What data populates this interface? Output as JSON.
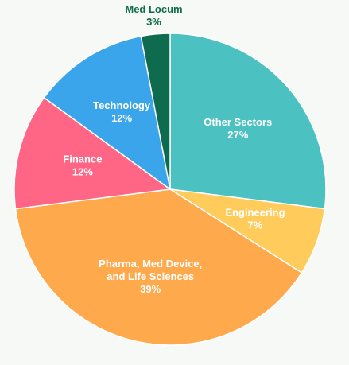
{
  "chart_data": {
    "type": "pie",
    "title": "",
    "start_angle_deg": 0,
    "direction": "clockwise",
    "slices": [
      {
        "label_lines": [
          "Other Sectors"
        ],
        "label": "Other Sectors",
        "value": 27,
        "value_label": "27%",
        "color": "#4cc1c1"
      },
      {
        "label_lines": [
          "Engineering"
        ],
        "label": "Engineering",
        "value": 7,
        "value_label": "7%",
        "color": "#ffcc5c"
      },
      {
        "label_lines": [
          "Pharma, Med Device,",
          "and Life Sciences"
        ],
        "label": "Pharma, Med Device, and Life Sciences",
        "value": 39,
        "value_label": "39%",
        "color": "#ffa94d"
      },
      {
        "label_lines": [
          "Finance"
        ],
        "label": "Finance",
        "value": 12,
        "value_label": "12%",
        "color": "#ff6584"
      },
      {
        "label_lines": [
          "Technology"
        ],
        "label": "Technology",
        "value": 12,
        "value_label": "12%",
        "color": "#3aa5ea"
      },
      {
        "label_lines": [
          "Med Locum"
        ],
        "label": "Med Locum",
        "value": 3,
        "value_label": "3%",
        "color": "#0e6b4e",
        "label_outside": true
      }
    ]
  }
}
